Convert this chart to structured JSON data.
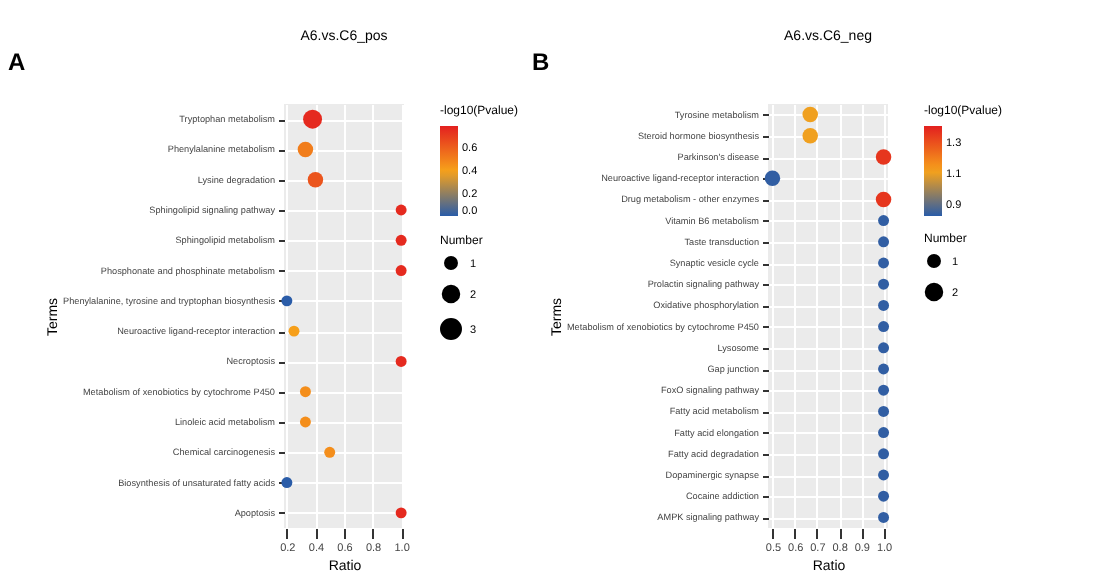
{
  "chart_data": [
    {
      "type": "bubble",
      "orientation": "horizontal",
      "title": "A6.vs.C6_pos",
      "xlabel": "Ratio",
      "ylabel": "Terms",
      "legend_title": "Number",
      "clabel": "-log10(Pvalue)",
      "annotations": [
        "A"
      ],
      "categories": [
        "Tryptophan metabolism",
        "Phenylalanine metabolism",
        "Lysine degradation",
        "Sphingolipid signaling pathway",
        "Sphingolipid metabolism",
        "Phosphonate and phosphinate metabolism",
        "Phenylalanine, tyrosine and tryptophan biosynthesis",
        "Neuroactive ligand-receptor interaction",
        "Necroptosis",
        "Metabolism of xenobiotics by cytochrome P450",
        "Linoleic acid metabolism",
        "Chemical carcinogenesis",
        "Biosynthesis of unsaturated fatty acids",
        "Apoptosis"
      ],
      "values": [
        0.38,
        0.33,
        0.4,
        1.0,
        1.0,
        1.0,
        0.2,
        0.25,
        1.0,
        0.33,
        0.33,
        0.5,
        0.2,
        1.0
      ],
      "sizes": [
        3,
        2,
        2,
        1,
        1,
        1,
        1,
        1,
        1,
        1,
        1,
        1,
        1,
        1
      ],
      "size_legend": [
        1,
        2,
        3
      ],
      "cvalues": [
        0.75,
        0.5,
        0.62,
        0.75,
        0.75,
        0.75,
        0.0,
        0.4,
        0.75,
        0.45,
        0.45,
        0.45,
        0.0,
        0.75
      ],
      "clim": [
        0.0,
        0.78
      ],
      "cticks": [
        {
          "value": 0,
          "label": "0.0"
        },
        0.2,
        0.4,
        0.6
      ],
      "xlim": [
        0.18,
        1.02
      ],
      "xticks": [
        0.2,
        0.4,
        0.6,
        0.8,
        {
          "value": 1,
          "label": "1.0"
        }
      ],
      "grid": true
    },
    {
      "type": "bubble",
      "orientation": "horizontal",
      "title": "A6.vs.C6_neg",
      "xlabel": "Ratio",
      "ylabel": "Terms",
      "legend_title": "Number",
      "clabel": "-log10(Pvalue)",
      "annotations": [
        "B"
      ],
      "categories": [
        "Tyrosine metabolism",
        "Steroid hormone biosynthesis",
        "Parkinson's disease",
        "Neuroactive ligand-receptor interaction",
        "Drug metabolism - other enzymes",
        "Vitamin B6 metabolism",
        "Taste transduction",
        "Synaptic vesicle cycle",
        "Prolactin signaling pathway",
        "Oxidative phosphorylation",
        "Metabolism of xenobiotics by cytochrome P450",
        "Lysosome",
        "Gap junction",
        "FoxO signaling pathway",
        "Fatty acid metabolism",
        "Fatty acid elongation",
        "Fatty acid degradation",
        "Dopaminergic synapse",
        "Cocaine addiction",
        "AMPK signaling pathway"
      ],
      "values": [
        0.67,
        0.67,
        1.0,
        0.5,
        1.0,
        1.0,
        1.0,
        1.0,
        1.0,
        1.0,
        1.0,
        1.0,
        1.0,
        1.0,
        1.0,
        1.0,
        1.0,
        1.0,
        1.0,
        1.0
      ],
      "sizes": [
        2,
        2,
        2,
        2,
        2,
        1,
        1,
        1,
        1,
        1,
        1,
        1,
        1,
        1,
        1,
        1,
        1,
        1,
        1,
        1
      ],
      "size_legend": [
        1,
        2
      ],
      "cvalues": [
        1.1,
        1.1,
        1.35,
        0.83,
        1.35,
        0.83,
        0.83,
        0.83,
        0.83,
        0.83,
        0.83,
        0.83,
        0.83,
        0.83,
        0.83,
        0.83,
        0.83,
        0.83,
        0.83,
        0.83
      ],
      "clim": [
        0.82,
        1.4
      ],
      "cticks": [
        0.9,
        1.1,
        1.3
      ],
      "xlim": [
        0.48,
        1.02
      ],
      "xticks": [
        0.5,
        0.6,
        0.7,
        0.8,
        0.9,
        {
          "value": 1,
          "label": "1.0"
        }
      ],
      "grid": true
    }
  ]
}
